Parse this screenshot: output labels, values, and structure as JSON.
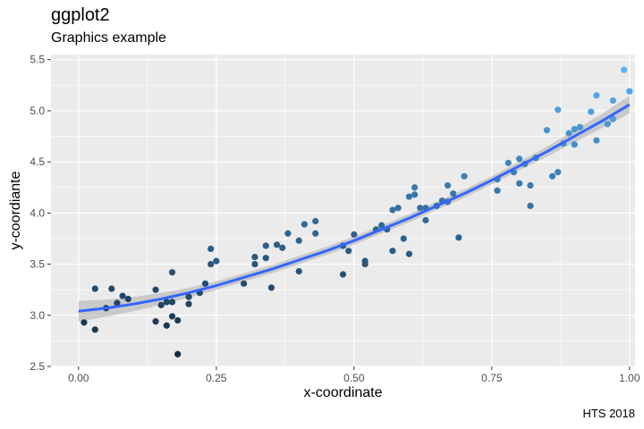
{
  "title": "ggplot2",
  "subtitle": "Graphics example",
  "caption": "HTS 2018",
  "chart_data": {
    "type": "scatter",
    "title": "ggplot2",
    "subtitle": "Graphics example",
    "xlabel": "x-coordinate",
    "ylabel": "y-coordiante",
    "caption": "HTS 2018",
    "xlim": [
      -0.05,
      1.01
    ],
    "ylim": [
      2.5,
      5.55
    ],
    "x_ticks": [
      0.0,
      0.25,
      0.5,
      0.75,
      1.0
    ],
    "x_tick_labels": [
      "0.00",
      "0.25",
      "0.50",
      "0.75",
      "1.00"
    ],
    "y_ticks": [
      2.5,
      3.0,
      3.5,
      4.0,
      4.5,
      5.0,
      5.5
    ],
    "y_tick_labels": [
      "2.5",
      "3.0",
      "3.5",
      "4.0",
      "4.5",
      "5.0",
      "5.5"
    ],
    "grid": true,
    "legend": "none",
    "colors": {
      "panel": "#EBEBEB",
      "grid": "#FFFFFF",
      "fit_line": "#3366FF",
      "ribbon": "#BEBEBE",
      "point_low": "#132B43",
      "point_high": "#56B1F7"
    },
    "points": [
      {
        "x": 0.01,
        "y": 2.93
      },
      {
        "x": 0.03,
        "y": 2.86
      },
      {
        "x": 0.03,
        "y": 3.26
      },
      {
        "x": 0.05,
        "y": 3.07
      },
      {
        "x": 0.06,
        "y": 3.26
      },
      {
        "x": 0.07,
        "y": 3.12
      },
      {
        "x": 0.08,
        "y": 3.19
      },
      {
        "x": 0.09,
        "y": 3.16
      },
      {
        "x": 0.14,
        "y": 2.94
      },
      {
        "x": 0.14,
        "y": 3.25
      },
      {
        "x": 0.15,
        "y": 3.1
      },
      {
        "x": 0.16,
        "y": 3.13
      },
      {
        "x": 0.16,
        "y": 2.9
      },
      {
        "x": 0.17,
        "y": 2.99
      },
      {
        "x": 0.17,
        "y": 3.13
      },
      {
        "x": 0.17,
        "y": 3.42
      },
      {
        "x": 0.18,
        "y": 2.95
      },
      {
        "x": 0.18,
        "y": 2.62
      },
      {
        "x": 0.2,
        "y": 3.18
      },
      {
        "x": 0.2,
        "y": 3.11
      },
      {
        "x": 0.22,
        "y": 3.22
      },
      {
        "x": 0.23,
        "y": 3.31
      },
      {
        "x": 0.24,
        "y": 3.5
      },
      {
        "x": 0.24,
        "y": 3.65
      },
      {
        "x": 0.25,
        "y": 3.53
      },
      {
        "x": 0.3,
        "y": 3.31
      },
      {
        "x": 0.32,
        "y": 3.5
      },
      {
        "x": 0.32,
        "y": 3.57
      },
      {
        "x": 0.34,
        "y": 3.56
      },
      {
        "x": 0.34,
        "y": 3.68
      },
      {
        "x": 0.35,
        "y": 3.27
      },
      {
        "x": 0.36,
        "y": 3.69
      },
      {
        "x": 0.37,
        "y": 3.66
      },
      {
        "x": 0.38,
        "y": 3.8
      },
      {
        "x": 0.4,
        "y": 3.43
      },
      {
        "x": 0.4,
        "y": 3.73
      },
      {
        "x": 0.41,
        "y": 3.89
      },
      {
        "x": 0.43,
        "y": 3.8
      },
      {
        "x": 0.43,
        "y": 3.92
      },
      {
        "x": 0.48,
        "y": 3.4
      },
      {
        "x": 0.48,
        "y": 3.68
      },
      {
        "x": 0.49,
        "y": 3.63
      },
      {
        "x": 0.5,
        "y": 3.79
      },
      {
        "x": 0.52,
        "y": 3.5
      },
      {
        "x": 0.52,
        "y": 3.53
      },
      {
        "x": 0.54,
        "y": 3.84
      },
      {
        "x": 0.55,
        "y": 3.88
      },
      {
        "x": 0.56,
        "y": 3.84
      },
      {
        "x": 0.57,
        "y": 3.63
      },
      {
        "x": 0.57,
        "y": 4.03
      },
      {
        "x": 0.58,
        "y": 4.05
      },
      {
        "x": 0.59,
        "y": 3.75
      },
      {
        "x": 0.6,
        "y": 3.6
      },
      {
        "x": 0.6,
        "y": 4.16
      },
      {
        "x": 0.61,
        "y": 4.25
      },
      {
        "x": 0.61,
        "y": 4.18
      },
      {
        "x": 0.62,
        "y": 4.05
      },
      {
        "x": 0.63,
        "y": 3.93
      },
      {
        "x": 0.63,
        "y": 4.05
      },
      {
        "x": 0.65,
        "y": 4.07
      },
      {
        "x": 0.66,
        "y": 4.12
      },
      {
        "x": 0.67,
        "y": 4.27
      },
      {
        "x": 0.67,
        "y": 4.11
      },
      {
        "x": 0.68,
        "y": 4.19
      },
      {
        "x": 0.69,
        "y": 3.76
      },
      {
        "x": 0.7,
        "y": 4.36
      },
      {
        "x": 0.76,
        "y": 4.22
      },
      {
        "x": 0.76,
        "y": 4.33
      },
      {
        "x": 0.78,
        "y": 4.49
      },
      {
        "x": 0.79,
        "y": 4.4
      },
      {
        "x": 0.8,
        "y": 4.53
      },
      {
        "x": 0.8,
        "y": 4.29
      },
      {
        "x": 0.81,
        "y": 4.48
      },
      {
        "x": 0.82,
        "y": 4.27
      },
      {
        "x": 0.82,
        "y": 4.07
      },
      {
        "x": 0.83,
        "y": 4.54
      },
      {
        "x": 0.85,
        "y": 4.81
      },
      {
        "x": 0.86,
        "y": 4.36
      },
      {
        "x": 0.87,
        "y": 4.4
      },
      {
        "x": 0.87,
        "y": 5.01
      },
      {
        "x": 0.88,
        "y": 4.68
      },
      {
        "x": 0.89,
        "y": 4.78
      },
      {
        "x": 0.9,
        "y": 4.82
      },
      {
        "x": 0.9,
        "y": 4.67
      },
      {
        "x": 0.91,
        "y": 4.84
      },
      {
        "x": 0.93,
        "y": 4.99
      },
      {
        "x": 0.94,
        "y": 5.15
      },
      {
        "x": 0.94,
        "y": 4.71
      },
      {
        "x": 0.96,
        "y": 4.87
      },
      {
        "x": 0.97,
        "y": 4.92
      },
      {
        "x": 0.97,
        "y": 5.1
      },
      {
        "x": 0.99,
        "y": 5.4
      },
      {
        "x": 1.0,
        "y": 5.19
      }
    ],
    "fit": {
      "x": [
        0.0,
        0.05,
        0.1,
        0.15,
        0.2,
        0.25,
        0.3,
        0.35,
        0.4,
        0.45,
        0.5,
        0.55,
        0.6,
        0.65,
        0.7,
        0.75,
        0.8,
        0.85,
        0.9,
        0.95,
        1.0
      ],
      "y": [
        3.04,
        3.07,
        3.11,
        3.16,
        3.22,
        3.29,
        3.37,
        3.45,
        3.54,
        3.63,
        3.73,
        3.84,
        3.95,
        4.07,
        4.19,
        4.32,
        4.46,
        4.6,
        4.75,
        4.9,
        5.06
      ],
      "se": [
        0.1,
        0.085,
        0.07,
        0.058,
        0.048,
        0.042,
        0.04,
        0.04,
        0.04,
        0.04,
        0.04,
        0.04,
        0.04,
        0.04,
        0.04,
        0.04,
        0.042,
        0.048,
        0.058,
        0.07,
        0.085
      ]
    }
  }
}
